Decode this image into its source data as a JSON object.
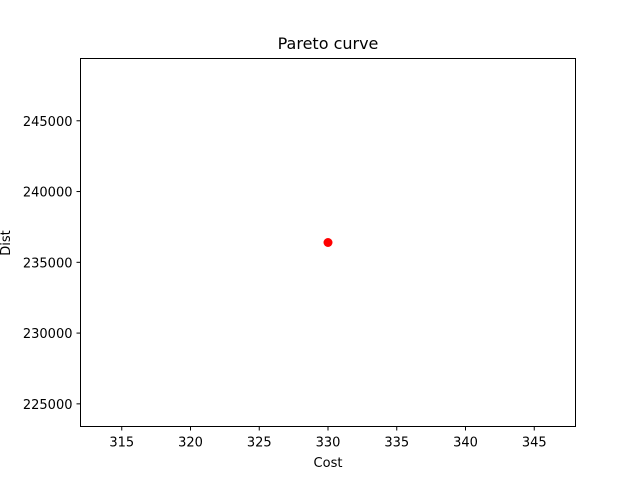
{
  "chart_data": {
    "type": "scatter",
    "title": "Pareto curve",
    "xlabel": "Cost",
    "ylabel": "Dist",
    "xlim": [
      312,
      348
    ],
    "ylim": [
      223400,
      249400
    ],
    "xticks": [
      315,
      320,
      325,
      330,
      335,
      340,
      345
    ],
    "yticks": [
      225000,
      230000,
      235000,
      240000,
      245000
    ],
    "grid": false,
    "points": [
      {
        "x": 330,
        "y": 236400
      }
    ],
    "colors": {
      "point": "#ff0000",
      "axes": "#000000",
      "background": "#ffffff"
    }
  }
}
